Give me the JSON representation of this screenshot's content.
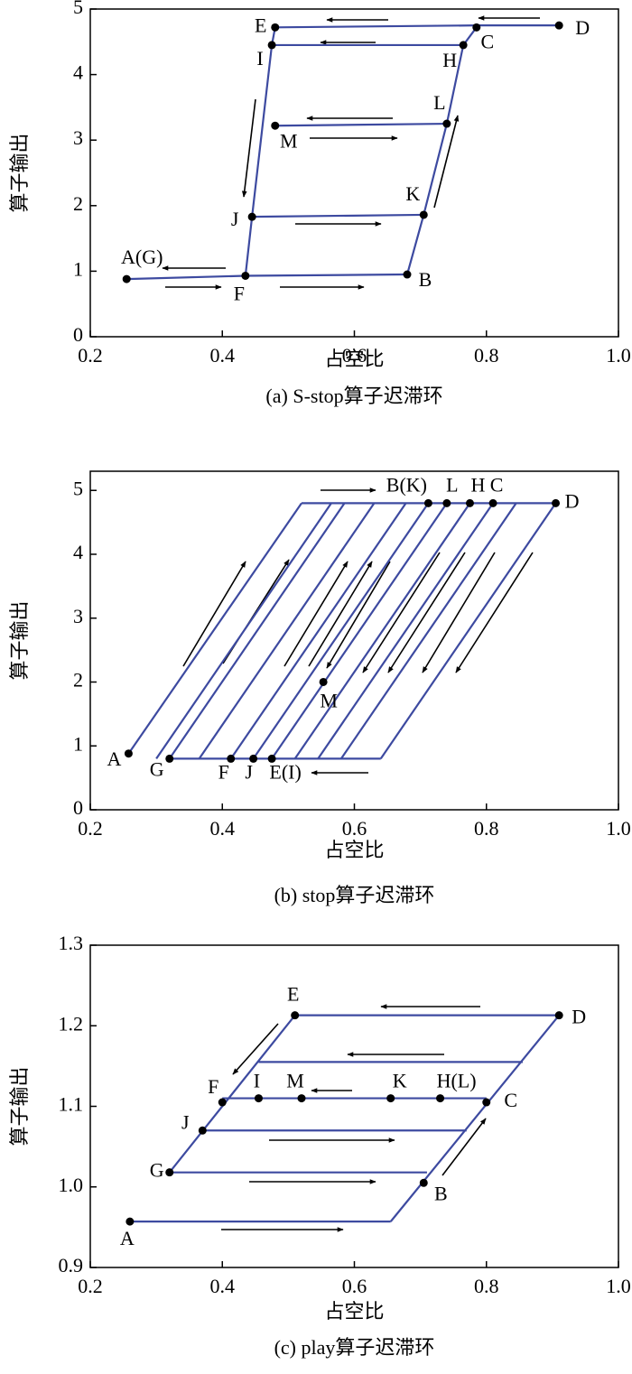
{
  "chart_data": [
    {
      "type": "line",
      "caption": "(a) S-stop算子迟滞环",
      "xlabel": "占空比",
      "ylabel": "算子输出",
      "xlim": [
        0.2,
        1.0
      ],
      "xticks": [
        0.2,
        0.4,
        0.6,
        0.8,
        {
          "value": 1,
          "label": "1.0"
        }
      ],
      "ylim": [
        0,
        5
      ],
      "yticks": [
        0,
        1,
        2,
        3,
        4,
        5
      ],
      "marker_color": "#000000",
      "series": [
        {
          "color": "#3d4aa0",
          "x": [
            0.255,
            0.435,
            0.68
          ],
          "y": [
            0.88,
            0.93,
            0.95
          ]
        },
        {
          "color": "#3d4aa0",
          "x": [
            0.68,
            0.705,
            0.74,
            0.765,
            0.785
          ],
          "y": [
            0.95,
            1.86,
            3.25,
            4.45,
            4.72
          ]
        },
        {
          "color": "#3d4aa0",
          "x": [
            0.48,
            0.785,
            0.91
          ],
          "y": [
            4.72,
            4.75,
            4.75
          ]
        },
        {
          "color": "#3d4aa0",
          "x": [
            0.475,
            0.765
          ],
          "y": [
            4.45,
            4.45
          ]
        },
        {
          "color": "#3d4aa0",
          "x": [
            0.48,
            0.74
          ],
          "y": [
            3.22,
            3.25
          ]
        },
        {
          "color": "#3d4aa0",
          "x": [
            0.445,
            0.705
          ],
          "y": [
            1.83,
            1.86
          ]
        },
        {
          "color": "#3d4aa0",
          "x": [
            0.435,
            0.445,
            0.475,
            0.48
          ],
          "y": [
            0.93,
            1.83,
            4.45,
            4.72
          ]
        }
      ],
      "points": [
        {
          "label": "A(G)",
          "x": 0.255,
          "y": 0.88
        },
        {
          "label": "F",
          "x": 0.435,
          "y": 0.93
        },
        {
          "label": "B",
          "x": 0.68,
          "y": 0.95
        },
        {
          "label": "K",
          "x": 0.705,
          "y": 1.86
        },
        {
          "label": "L",
          "x": 0.74,
          "y": 3.25
        },
        {
          "label": "H",
          "x": 0.765,
          "y": 4.45
        },
        {
          "label": "C",
          "x": 0.785,
          "y": 4.72
        },
        {
          "label": "D",
          "x": 0.91,
          "y": 4.75
        },
        {
          "label": "E",
          "x": 0.48,
          "y": 4.72
        },
        {
          "label": "I",
          "x": 0.475,
          "y": 4.45
        },
        {
          "label": "J",
          "x": 0.445,
          "y": 1.83
        },
        {
          "label": "M",
          "x": 0.48,
          "y": 3.22
        }
      ]
    },
    {
      "type": "line",
      "caption": "(b) stop算子迟滞环",
      "xlabel": "占空比",
      "ylabel": "算子输出",
      "xlim": [
        0.2,
        1.0
      ],
      "xticks": [
        0.2,
        0.4,
        0.6,
        0.8,
        {
          "value": 1,
          "label": "1.0"
        }
      ],
      "ylim": [
        0,
        5.3
      ],
      "yticks": [
        0,
        1,
        2,
        3,
        4,
        5
      ],
      "marker_color": "#000000",
      "series": [
        {
          "color": "#3d4aa0",
          "x": [
            0.258,
            0.52
          ],
          "y": [
            0.88,
            4.8
          ]
        },
        {
          "color": "#3d4aa0",
          "x": [
            0.32,
            0.64
          ],
          "y": [
            0.8,
            0.8
          ]
        },
        {
          "color": "#3d4aa0",
          "x": [
            0.52,
            0.905
          ],
          "y": [
            4.8,
            4.8
          ]
        },
        {
          "color": "#3d4aa0",
          "x": [
            0.3,
            0.565
          ],
          "y": [
            0.8,
            4.8
          ]
        },
        {
          "color": "#3d4aa0",
          "x": [
            0.32,
            0.585
          ],
          "y": [
            0.8,
            4.8
          ]
        },
        {
          "color": "#3d4aa0",
          "x": [
            0.365,
            0.63
          ],
          "y": [
            0.8,
            4.8
          ]
        },
        {
          "color": "#3d4aa0",
          "x": [
            0.413,
            0.678
          ],
          "y": [
            0.8,
            4.8
          ]
        },
        {
          "color": "#3d4aa0",
          "x": [
            0.447,
            0.712
          ],
          "y": [
            0.8,
            4.8
          ]
        },
        {
          "color": "#3d4aa0",
          "x": [
            0.475,
            0.74
          ],
          "y": [
            0.8,
            4.8
          ]
        },
        {
          "color": "#3d4aa0",
          "x": [
            0.51,
            0.775
          ],
          "y": [
            0.8,
            4.8
          ]
        },
        {
          "color": "#3d4aa0",
          "x": [
            0.545,
            0.81
          ],
          "y": [
            0.8,
            4.8
          ]
        },
        {
          "color": "#3d4aa0",
          "x": [
            0.58,
            0.845
          ],
          "y": [
            0.8,
            4.8
          ]
        },
        {
          "color": "#3d4aa0",
          "x": [
            0.64,
            0.905
          ],
          "y": [
            0.8,
            4.8
          ]
        }
      ],
      "points": [
        {
          "label": "A",
          "x": 0.258,
          "y": 0.88
        },
        {
          "label": "G",
          "x": 0.32,
          "y": 0.8
        },
        {
          "label": "F",
          "x": 0.413,
          "y": 0.8
        },
        {
          "label": "J",
          "x": 0.447,
          "y": 0.8
        },
        {
          "label": "E(I)",
          "x": 0.475,
          "y": 0.8
        },
        {
          "label": "M",
          "x": 0.553,
          "y": 2.0
        },
        {
          "label": "B(K)",
          "x": 0.712,
          "y": 4.8
        },
        {
          "label": "L",
          "x": 0.74,
          "y": 4.8
        },
        {
          "label": "H",
          "x": 0.775,
          "y": 4.8
        },
        {
          "label": "C",
          "x": 0.81,
          "y": 4.8
        },
        {
          "label": "D",
          "x": 0.905,
          "y": 4.8
        }
      ]
    },
    {
      "type": "line",
      "caption": "(c) play算子迟滞环",
      "xlabel": "占空比",
      "ylabel": "算子输出",
      "xlim": [
        0.2,
        1.0
      ],
      "xticks": [
        0.2,
        0.4,
        0.6,
        0.8,
        {
          "value": 1,
          "label": "1.0"
        }
      ],
      "ylim": [
        0.9,
        1.3
      ],
      "yticks": [
        0.9,
        {
          "value": 1,
          "label": "1.0"
        },
        1.1,
        1.2,
        1.3
      ],
      "marker_color": "#000000",
      "series": [
        {
          "color": "#3d4aa0",
          "x": [
            0.26,
            0.655
          ],
          "y": [
            0.957,
            0.957
          ]
        },
        {
          "color": "#3d4aa0",
          "x": [
            0.32,
            0.71
          ],
          "y": [
            1.018,
            1.018
          ]
        },
        {
          "color": "#3d4aa0",
          "x": [
            0.37,
            0.77
          ],
          "y": [
            1.07,
            1.07
          ]
        },
        {
          "color": "#3d4aa0",
          "x": [
            0.4,
            0.8
          ],
          "y": [
            1.11,
            1.11
          ]
        },
        {
          "color": "#3d4aa0",
          "x": [
            0.455,
            0.855
          ],
          "y": [
            1.155,
            1.155
          ]
        },
        {
          "color": "#3d4aa0",
          "x": [
            0.51,
            0.91
          ],
          "y": [
            1.213,
            1.213
          ]
        },
        {
          "color": "#3d4aa0",
          "x": [
            0.32,
            0.51
          ],
          "y": [
            1.018,
            1.213
          ]
        },
        {
          "color": "#3d4aa0",
          "x": [
            0.655,
            0.91
          ],
          "y": [
            0.957,
            1.213
          ]
        }
      ],
      "points": [
        {
          "label": "A",
          "x": 0.26,
          "y": 0.957
        },
        {
          "label": "G",
          "x": 0.32,
          "y": 1.018
        },
        {
          "label": "J",
          "x": 0.37,
          "y": 1.07
        },
        {
          "label": "F",
          "x": 0.4,
          "y": 1.105
        },
        {
          "label": "I",
          "x": 0.455,
          "y": 1.11
        },
        {
          "label": "M",
          "x": 0.52,
          "y": 1.11
        },
        {
          "label": "K",
          "x": 0.655,
          "y": 1.11
        },
        {
          "label": "H(L)",
          "x": 0.73,
          "y": 1.11
        },
        {
          "label": "C",
          "x": 0.8,
          "y": 1.105
        },
        {
          "label": "B",
          "x": 0.705,
          "y": 1.005
        },
        {
          "label": "E",
          "x": 0.51,
          "y": 1.213
        },
        {
          "label": "D",
          "x": 0.91,
          "y": 1.213
        }
      ]
    }
  ]
}
